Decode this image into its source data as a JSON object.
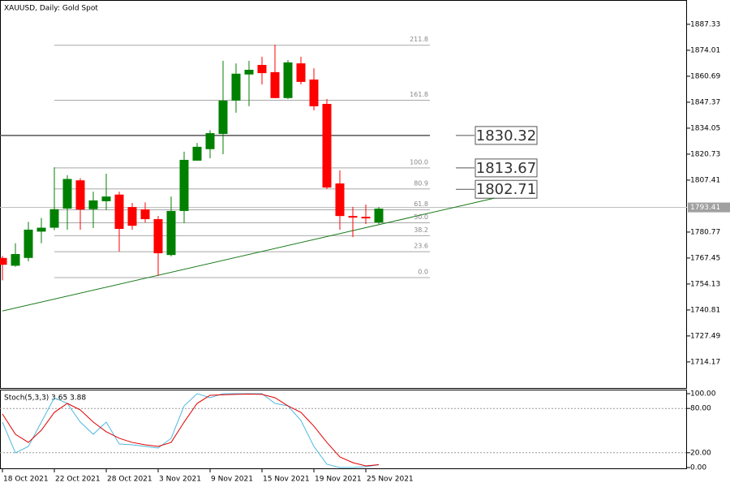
{
  "chart_data": [
    {
      "type": "candlestick",
      "title": "XAUUSD, Daily:  Gold Spot",
      "categories": [
        "18 Oct 2021",
        null,
        null,
        null,
        "22 Oct 2021",
        null,
        null,
        null,
        "28 Oct 2021",
        null,
        null,
        null,
        "3 Nov 2021",
        null,
        null,
        null,
        "9 Nov 2021",
        null,
        null,
        null,
        "15 Nov 2021",
        null,
        null,
        null,
        "19 Nov 2021",
        null,
        null,
        null,
        "25 Nov 2021",
        null
      ],
      "open": [
        1767.5,
        1763.5,
        1767.5,
        1781,
        1783,
        1792.8,
        1807.3,
        1792.5,
        1796.6,
        1800,
        1793.6,
        1792.4,
        1787.4,
        1769,
        1791.6,
        1817.4,
        1823.3,
        1831.1,
        1848.2,
        1861.6,
        1866.5,
        1862.8,
        1849.5,
        1867.3,
        1859,
        1846.5,
        1805.7,
        1789,
        1788.6,
        1785.7
      ],
      "high": [
        1768.5,
        1775,
        1786,
        1788,
        1814,
        1810,
        1808.4,
        1801.5,
        1810.7,
        1801.5,
        1795.7,
        1796,
        1789,
        1799,
        1822,
        1826.5,
        1833,
        1868.6,
        1867.3,
        1868.6,
        1870.7,
        1876.9,
        1869,
        1870.7,
        1864.8,
        1849,
        1812.4,
        1793.7,
        1794.9,
        1793.6
      ],
      "low": [
        1756,
        1763,
        1765.8,
        1775,
        1781.7,
        1782,
        1782,
        1782.8,
        1792,
        1770.8,
        1782,
        1785.7,
        1758.3,
        1768.3,
        1785.3,
        1817.4,
        1818.6,
        1820.7,
        1842,
        1845.3,
        1856.5,
        1849.5,
        1849,
        1856.5,
        1843.2,
        1802.8,
        1782,
        1778.2,
        1784.9,
        1784.9
      ],
      "close": [
        1764,
        1769.5,
        1782,
        1783,
        1792.5,
        1808,
        1792.3,
        1797,
        1799,
        1782.4,
        1784,
        1787.4,
        1769.9,
        1791.6,
        1817.8,
        1824.5,
        1831.5,
        1848.2,
        1862,
        1864,
        1862.3,
        1849.5,
        1867.8,
        1857.8,
        1845.3,
        1803.6,
        1789,
        1788.2,
        1787.8,
        1792.8
      ],
      "up_color": "#008000",
      "down_color": "#ff0000",
      "ylim": [
        1700.8,
        1899.8
      ],
      "yticks": [
        1887.33,
        1874.01,
        1860.69,
        1847.37,
        1834.05,
        1820.73,
        1807.41,
        1780.77,
        1767.45,
        1754.13,
        1740.81,
        1727.49,
        1714.17
      ],
      "current_price": 1793.41,
      "price_lines": [
        1830.32,
        1813.67,
        1802.71
      ],
      "fib_levels": [
        {
          "level": "211.8",
          "price": 1876.6
        },
        {
          "level": "161.8",
          "price": 1848.4
        },
        {
          "level": "100.0",
          "price": 1813.67
        },
        {
          "level": "80.9",
          "price": 1802.9
        },
        {
          "level": "61.8",
          "price": 1792.2
        },
        {
          "level": "50.0",
          "price": 1785.5
        },
        {
          "level": "38.2",
          "price": 1778.9
        },
        {
          "level": "23.6",
          "price": 1770.7
        },
        {
          "level": "0.0",
          "price": 1757.4
        }
      ],
      "trendline": [
        1740.3,
        1798.2
      ]
    },
    {
      "type": "line",
      "title": "Stoch(5,3,3) 3.65 3.88",
      "series": [
        {
          "name": "Main",
          "color": "#4fb8e0",
          "values": [
            61.5,
            19.8,
            28.6,
            61.5,
            94.5,
            86.8,
            61.5,
            45,
            61.5,
            31.9,
            30.8,
            28.6,
            26.4,
            39.6,
            83.5,
            100,
            94.5,
            100,
            100,
            100,
            100,
            86.8,
            83.5,
            63.7,
            28.6,
            4.4,
            0,
            0,
            1.1,
            3.65
          ]
        },
        {
          "name": "Signal",
          "color": "#e00000",
          "values": [
            72.5,
            45,
            34,
            50.5,
            74.7,
            86.8,
            78,
            61.5,
            48.4,
            39.6,
            34,
            30.8,
            28.6,
            34,
            61.5,
            86.8,
            97.8,
            98.5,
            99,
            99.5,
            99,
            94.5,
            83.5,
            74.7,
            56,
            34,
            14.3,
            6.6,
            2.2,
            3.88
          ]
        }
      ],
      "ylim": [
        -2.2,
        105.5
      ],
      "yticks": [
        {
          "value": 100,
          "label": "100.00"
        },
        {
          "value": 80,
          "label": "80.00"
        },
        {
          "value": 20,
          "label": "20.00"
        },
        {
          "value": 0,
          "label": "0.00"
        }
      ],
      "levels": [
        80,
        20
      ]
    }
  ]
}
